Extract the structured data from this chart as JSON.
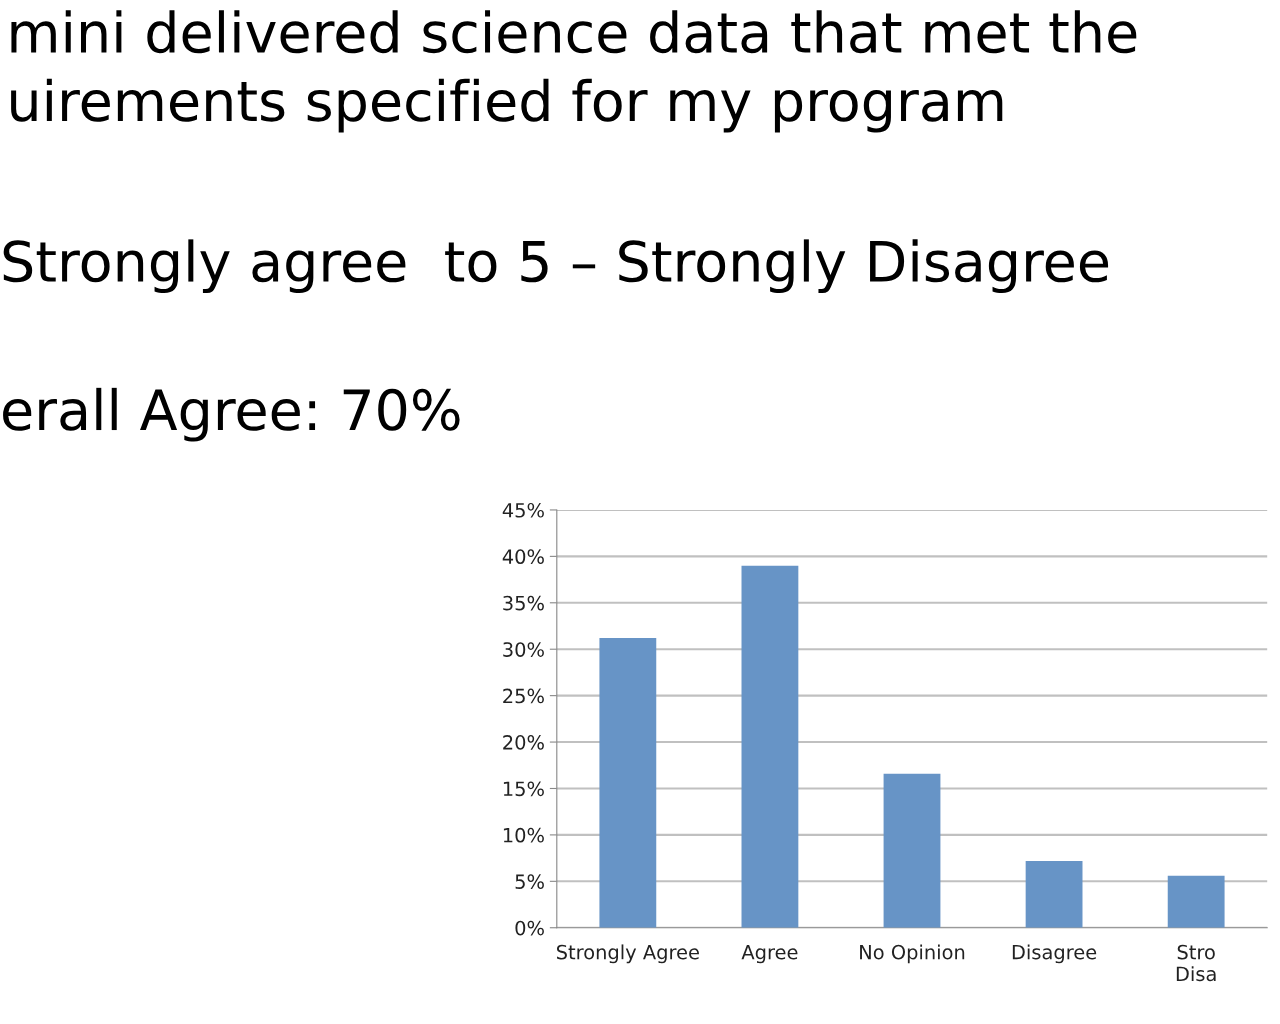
{
  "chart_data": {
    "type": "bar",
    "title": "mini delivered science data that met the\nuirements specified for my program",
    "annotations": [
      "Strongly agree  to 5 – Strongly Disagree",
      "erall Agree: 70%"
    ],
    "categories": [
      "Strongly Agree",
      "Agree",
      "No Opinion",
      "Disagree",
      "Stro\nDisa"
    ],
    "values": [
      31.2,
      39.0,
      16.6,
      7.2,
      5.6
    ],
    "color": "#6794c6",
    "ylim": [
      0,
      45
    ],
    "yticks": [
      {
        "value": 0,
        "label": "0%"
      },
      {
        "value": 5,
        "label": "5%"
      },
      {
        "value": 10,
        "label": "10%"
      },
      {
        "value": 15,
        "label": "15%"
      },
      {
        "value": 20,
        "label": "20%"
      },
      {
        "value": 25,
        "label": "25%"
      },
      {
        "value": 30,
        "label": "30%"
      },
      {
        "value": 35,
        "label": "35%"
      },
      {
        "value": 40,
        "label": "40%"
      },
      {
        "value": 45,
        "label": "45%"
      }
    ],
    "grid": "y",
    "legend": false
  }
}
